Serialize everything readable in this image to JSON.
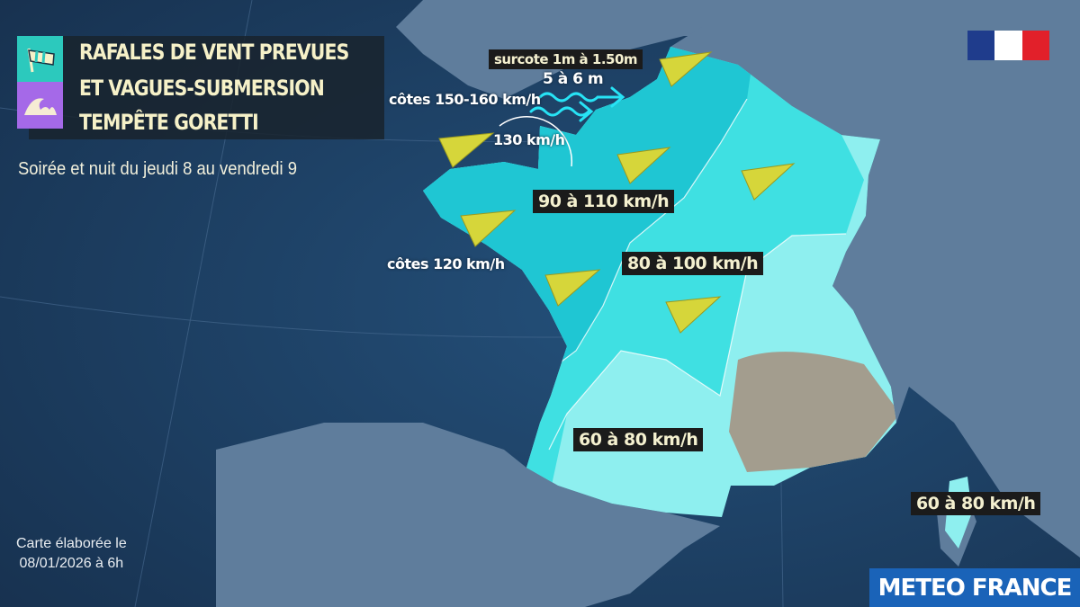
{
  "header": {
    "title_lines": [
      "RAFALES DE VENT PREVUES",
      "ET VAGUES-SUBMERSION",
      "TEMPÊTE GORETTI"
    ],
    "subtitle": "Soirée et nuit du jeudi 8 au vendredi 9",
    "icons": [
      "windsock-icon",
      "wave-icon"
    ]
  },
  "labels": {
    "surge": "surcote 1m à 1.50m",
    "waves": "5 à 6 m",
    "coast_north": "côtes 150-160 km/h",
    "gust_130": "130 km/h",
    "zone_west": "90 à 110 km/h",
    "coast_west": "côtes 120 km/h",
    "zone_center": "80 à 100 km/h",
    "zone_south": "60 à 80 km/h",
    "corsica": "60 à 80 km/h"
  },
  "footer": {
    "credit_line1": "Carte élaborée le",
    "credit_line2": "08/01/2026 à 6h",
    "brand": "METEO FRANCE"
  },
  "colors": {
    "sea": "#1d3b5e",
    "land": "#5f7d9c",
    "zone_90_110": "#1fc6d3",
    "zone_80_100": "#3fe0e2",
    "zone_60_80": "#8eefef",
    "wind_arrow": "#d6d63a",
    "wave_arrow": "#27e3f5",
    "flag": [
      "#1f3c8c",
      "#ffffff",
      "#e2202a"
    ]
  }
}
